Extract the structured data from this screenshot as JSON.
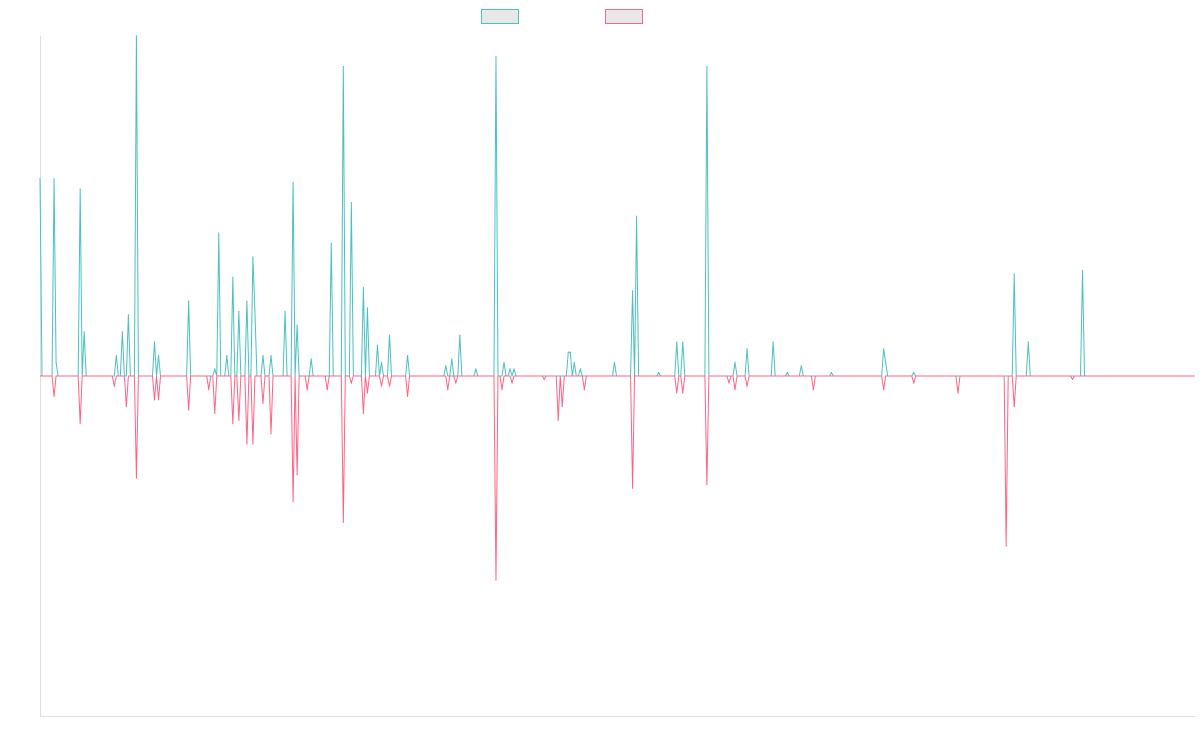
{
  "chart_data": {
    "type": "line",
    "title": "",
    "xlabel": "",
    "ylabel": "",
    "grid": false,
    "legend_position": "top-center",
    "ylim": [
      -100,
      100
    ],
    "x_count": 576,
    "colors": {
      "up": "#4bc0c0",
      "down": "#ff6384",
      "axis": "#dddddd",
      "swatch_fill": "#e8e8e8"
    },
    "series": [
      {
        "color": "#4bc0c0",
        "spikes": [
          [
            0,
            58
          ],
          [
            7,
            58
          ],
          [
            8,
            4
          ],
          [
            20,
            55
          ],
          [
            22,
            13
          ],
          [
            38,
            6
          ],
          [
            41,
            13
          ],
          [
            44,
            18
          ],
          [
            48,
            100
          ],
          [
            57,
            10
          ],
          [
            59,
            6
          ],
          [
            74,
            22
          ],
          [
            87,
            2
          ],
          [
            89,
            42
          ],
          [
            93,
            6
          ],
          [
            96,
            29
          ],
          [
            99,
            19
          ],
          [
            103,
            22
          ],
          [
            106,
            35
          ],
          [
            107,
            19
          ],
          [
            111,
            6
          ],
          [
            115,
            6
          ],
          [
            122,
            19
          ],
          [
            126,
            57
          ],
          [
            128,
            15
          ],
          [
            135,
            5
          ],
          [
            145,
            39
          ],
          [
            151,
            91
          ],
          [
            155,
            51
          ],
          [
            161,
            26
          ],
          [
            163,
            20
          ],
          [
            168,
            9
          ],
          [
            170,
            4
          ],
          [
            174,
            12
          ],
          [
            183,
            6
          ],
          [
            202,
            3
          ],
          [
            205,
            5
          ],
          [
            209,
            12
          ],
          [
            217,
            2
          ],
          [
            227,
            94
          ],
          [
            231,
            4
          ],
          [
            234,
            2
          ],
          [
            236,
            2
          ],
          [
            263,
            7
          ],
          [
            264,
            7
          ],
          [
            266,
            4
          ],
          [
            269,
            2
          ],
          [
            286,
            4
          ],
          [
            295,
            25
          ],
          [
            297,
            47
          ],
          [
            308,
            1
          ],
          [
            317,
            10
          ],
          [
            320,
            10
          ],
          [
            332,
            91
          ],
          [
            346,
            4
          ],
          [
            352,
            8
          ],
          [
            365,
            10
          ],
          [
            372,
            1
          ],
          [
            379,
            3
          ],
          [
            394,
            1
          ],
          [
            420,
            8
          ],
          [
            421,
            4
          ],
          [
            435,
            1
          ],
          [
            485,
            30
          ],
          [
            492,
            10
          ],
          [
            519,
            31
          ]
        ]
      },
      {
        "color": "#ff6384",
        "spikes": [
          [
            7,
            -6
          ],
          [
            20,
            -14
          ],
          [
            37,
            -3
          ],
          [
            43,
            -9
          ],
          [
            48,
            -30
          ],
          [
            57,
            -7
          ],
          [
            59,
            -7
          ],
          [
            74,
            -10
          ],
          [
            84,
            -4
          ],
          [
            87,
            -11
          ],
          [
            96,
            -14
          ],
          [
            99,
            -13
          ],
          [
            103,
            -20
          ],
          [
            106,
            -20
          ],
          [
            111,
            -8
          ],
          [
            115,
            -17
          ],
          [
            126,
            -37
          ],
          [
            128,
            -29
          ],
          [
            133,
            -4
          ],
          [
            143,
            -4
          ],
          [
            151,
            -43
          ],
          [
            155,
            -2
          ],
          [
            161,
            -11
          ],
          [
            163,
            -5
          ],
          [
            170,
            -3
          ],
          [
            174,
            -3
          ],
          [
            183,
            -6
          ],
          [
            203,
            -4
          ],
          [
            207,
            -2
          ],
          [
            227,
            -60
          ],
          [
            230,
            -4
          ],
          [
            235,
            -2
          ],
          [
            251,
            -1
          ],
          [
            258,
            -13
          ],
          [
            260,
            -9
          ],
          [
            271,
            -4
          ],
          [
            295,
            -33
          ],
          [
            317,
            -5
          ],
          [
            320,
            -5
          ],
          [
            332,
            -32
          ],
          [
            343,
            -2
          ],
          [
            346,
            -4
          ],
          [
            352,
            -3
          ],
          [
            385,
            -4
          ],
          [
            420,
            -4
          ],
          [
            435,
            -2
          ],
          [
            457,
            -5
          ],
          [
            481,
            -50
          ],
          [
            485,
            -9
          ],
          [
            514,
            -1
          ]
        ]
      }
    ]
  }
}
